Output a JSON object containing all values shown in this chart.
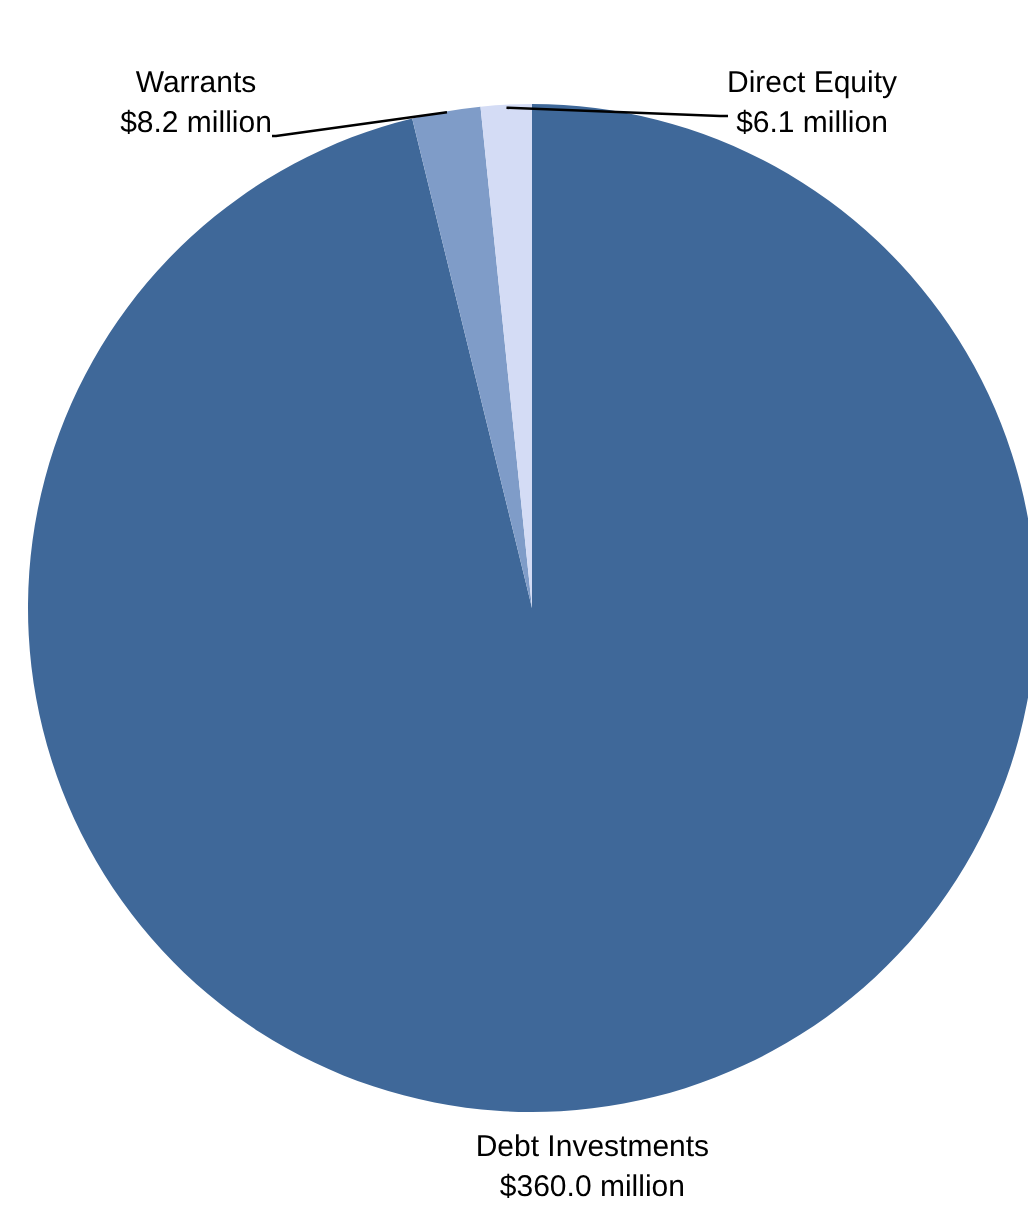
{
  "chart_data": {
    "type": "pie",
    "categories": [
      "Debt Investments",
      "Warrants",
      "Direct Equity"
    ],
    "values": [
      360.0,
      8.2,
      6.1
    ],
    "colors": [
      "#3f6899",
      "#7f9cc8",
      "#d4dcf5"
    ],
    "value_labels": [
      "$360.0 million",
      "$8.2 million",
      "$6.1 million"
    ]
  }
}
